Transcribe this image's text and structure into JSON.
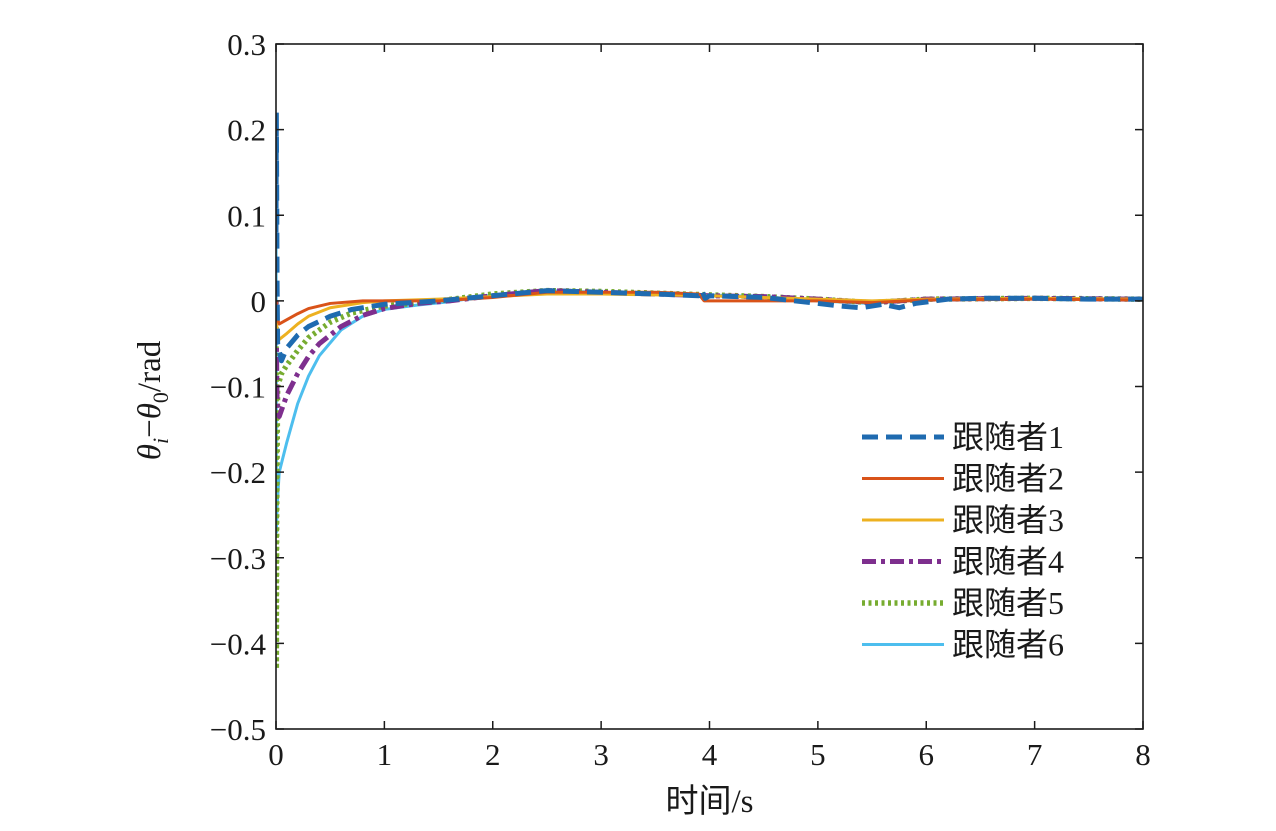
{
  "chart_data": {
    "type": "line",
    "xlabel": "时间/s",
    "ylabel": {
      "theta": "θ",
      "sub_i": "i",
      "dash": "−",
      "theta2": "θ",
      "sub_0": "0",
      "unit": "/rad"
    },
    "xlim": [
      0,
      8
    ],
    "ylim": [
      -0.5,
      0.3
    ],
    "xticks": [
      0,
      1,
      2,
      3,
      4,
      5,
      6,
      7,
      8
    ],
    "yticks": [
      0.3,
      0.2,
      0.1,
      0,
      -0.1,
      -0.2,
      -0.3,
      -0.4,
      -0.5
    ],
    "ytick_labels": [
      "0.3",
      "0.2",
      "0.1",
      "0",
      "−0.1",
      "−0.2",
      "−0.3",
      "−0.4",
      "−0.5"
    ],
    "grid": false,
    "legend_position": "lower-right",
    "series": [
      {
        "name": "跟随者1",
        "color": "#1f6bb0",
        "style": "dashed",
        "points": [
          [
            0,
            0.08
          ],
          [
            0.003,
            0.22
          ],
          [
            0.006,
            0.14
          ],
          [
            0.01,
            0.02
          ],
          [
            0.015,
            -0.05
          ],
          [
            0.05,
            -0.07
          ],
          [
            0.1,
            -0.055
          ],
          [
            0.2,
            -0.04
          ],
          [
            0.3,
            -0.03
          ],
          [
            0.5,
            -0.018
          ],
          [
            0.7,
            -0.01
          ],
          [
            1.0,
            -0.004
          ],
          [
            1.5,
            0.0
          ],
          [
            2.0,
            0.006
          ],
          [
            2.5,
            0.012
          ],
          [
            3.0,
            0.01
          ],
          [
            3.5,
            0.008
          ],
          [
            3.9,
            0.006
          ],
          [
            3.93,
            0.012
          ],
          [
            3.96,
            0.003
          ],
          [
            4.0,
            0.006
          ],
          [
            4.5,
            0.004
          ],
          [
            5.0,
            -0.003
          ],
          [
            5.2,
            -0.006
          ],
          [
            5.4,
            -0.008
          ],
          [
            5.6,
            -0.004
          ],
          [
            5.75,
            -0.008
          ],
          [
            5.9,
            -0.003
          ],
          [
            6.2,
            0.002
          ],
          [
            6.5,
            0.003
          ],
          [
            7.0,
            0.003
          ],
          [
            7.5,
            0.002
          ],
          [
            8.0,
            0.002
          ]
        ]
      },
      {
        "name": "跟随者2",
        "color": "#d95319",
        "style": "solid",
        "points": [
          [
            0,
            0.0
          ],
          [
            0.01,
            -0.02
          ],
          [
            0.03,
            -0.027
          ],
          [
            0.1,
            -0.022
          ],
          [
            0.2,
            -0.015
          ],
          [
            0.3,
            -0.009
          ],
          [
            0.5,
            -0.003
          ],
          [
            0.8,
            0.0
          ],
          [
            1.0,
            0.0
          ],
          [
            1.5,
            0.0
          ],
          [
            2.0,
            0.004
          ],
          [
            2.5,
            0.01
          ],
          [
            3.0,
            0.01
          ],
          [
            3.5,
            0.01
          ],
          [
            3.9,
            0.008
          ],
          [
            3.95,
            0.0
          ],
          [
            4.5,
            0.0
          ],
          [
            5.0,
            0.0
          ],
          [
            5.5,
            -0.002
          ],
          [
            6.0,
            0.001
          ],
          [
            7.0,
            0.002
          ],
          [
            8.0,
            0.001
          ]
        ]
      },
      {
        "name": "跟随者3",
        "color": "#edb120",
        "style": "solid",
        "points": [
          [
            0,
            0.0
          ],
          [
            0.01,
            -0.04
          ],
          [
            0.03,
            -0.045
          ],
          [
            0.1,
            -0.038
          ],
          [
            0.2,
            -0.027
          ],
          [
            0.3,
            -0.018
          ],
          [
            0.5,
            -0.008
          ],
          [
            0.8,
            -0.002
          ],
          [
            1.0,
            0.0
          ],
          [
            1.5,
            0.002
          ],
          [
            2.0,
            0.005
          ],
          [
            2.5,
            0.008
          ],
          [
            3.0,
            0.008
          ],
          [
            3.5,
            0.007
          ],
          [
            4.0,
            0.006
          ],
          [
            4.5,
            0.004
          ],
          [
            5.0,
            0.002
          ],
          [
            5.5,
            0.0
          ],
          [
            6.0,
            0.002
          ],
          [
            7.0,
            0.003
          ],
          [
            8.0,
            0.002
          ]
        ]
      },
      {
        "name": "跟随者4",
        "color": "#7e2f8e",
        "style": "dashdot",
        "points": [
          [
            0,
            0.0
          ],
          [
            0.01,
            -0.12
          ],
          [
            0.03,
            -0.135
          ],
          [
            0.1,
            -0.11
          ],
          [
            0.2,
            -0.085
          ],
          [
            0.3,
            -0.065
          ],
          [
            0.4,
            -0.05
          ],
          [
            0.6,
            -0.03
          ],
          [
            0.8,
            -0.017
          ],
          [
            1.0,
            -0.009
          ],
          [
            1.3,
            -0.003
          ],
          [
            1.6,
            0.0
          ],
          [
            2.0,
            0.006
          ],
          [
            2.5,
            0.012
          ],
          [
            3.0,
            0.01
          ],
          [
            3.5,
            0.008
          ],
          [
            4.0,
            0.006
          ],
          [
            4.5,
            0.005
          ],
          [
            5.0,
            0.002
          ],
          [
            5.5,
            -0.002
          ],
          [
            6.0,
            0.002
          ],
          [
            7.0,
            0.003
          ],
          [
            8.0,
            0.002
          ]
        ]
      },
      {
        "name": "跟随者5",
        "color": "#77ac30",
        "style": "dotted",
        "points": [
          [
            0,
            0.0
          ],
          [
            0.003,
            -0.43
          ],
          [
            0.006,
            -0.25
          ],
          [
            0.015,
            -0.1
          ],
          [
            0.05,
            -0.085
          ],
          [
            0.1,
            -0.075
          ],
          [
            0.2,
            -0.058
          ],
          [
            0.3,
            -0.043
          ],
          [
            0.5,
            -0.025
          ],
          [
            0.7,
            -0.014
          ],
          [
            1.0,
            -0.006
          ],
          [
            1.5,
            0.0
          ],
          [
            2.0,
            0.008
          ],
          [
            2.5,
            0.012
          ],
          [
            3.0,
            0.011
          ],
          [
            3.5,
            0.009
          ],
          [
            4.0,
            0.007
          ],
          [
            4.5,
            0.005
          ],
          [
            5.0,
            0.002
          ],
          [
            5.5,
            -0.002
          ],
          [
            6.0,
            0.002
          ],
          [
            7.0,
            0.003
          ],
          [
            8.0,
            0.002
          ]
        ]
      },
      {
        "name": "跟随者6",
        "color": "#4dbeee",
        "style": "solid",
        "points": [
          [
            0,
            0.12
          ],
          [
            0.004,
            -0.27
          ],
          [
            0.01,
            -0.24
          ],
          [
            0.03,
            -0.2
          ],
          [
            0.1,
            -0.165
          ],
          [
            0.2,
            -0.12
          ],
          [
            0.3,
            -0.088
          ],
          [
            0.4,
            -0.064
          ],
          [
            0.6,
            -0.034
          ],
          [
            0.8,
            -0.018
          ],
          [
            1.0,
            -0.01
          ],
          [
            1.3,
            -0.005
          ],
          [
            1.6,
            -0.001
          ],
          [
            2.0,
            0.007
          ],
          [
            2.5,
            0.012
          ],
          [
            3.0,
            0.01
          ],
          [
            3.5,
            0.008
          ],
          [
            3.95,
            0.007
          ],
          [
            4.5,
            0.005
          ],
          [
            5.0,
            0.0
          ],
          [
            5.5,
            -0.003
          ],
          [
            6.0,
            0.002
          ],
          [
            7.0,
            0.003
          ],
          [
            8.0,
            0.002
          ]
        ]
      }
    ]
  }
}
